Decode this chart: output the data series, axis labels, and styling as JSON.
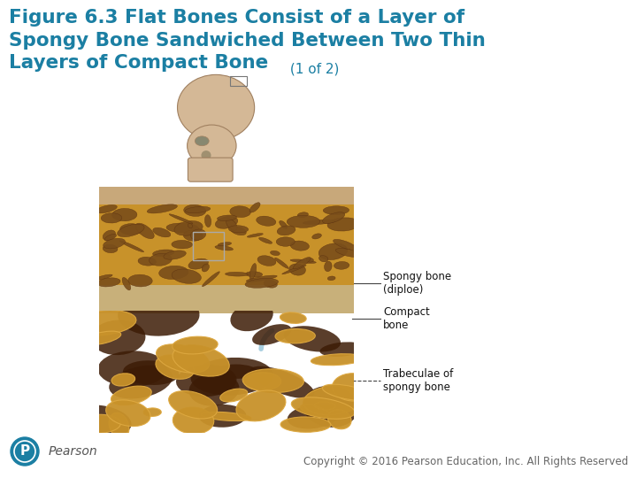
{
  "title_bold": "Figure 6.3 Flat Bones Consist of a Layer of\nSpongy Bone Sandwiched Between Two Thin\nLayers of Compact Bone",
  "title_suffix": " (1 of 2)",
  "title_color": "#1b7fa3",
  "title_fontsize": 15.5,
  "suffix_fontsize": 11,
  "bg_color": "#ffffff",
  "copyright_text": "Copyright © 2016 Pearson Education, Inc. All Rights Reserved",
  "copyright_fontsize": 8.5,
  "pearson_text": "Pearson",
  "pearson_color": "#555555",
  "pearson_icon_color": "#1b7fa3",
  "label_spongy": "Spongy bone\n(diploe)",
  "label_compact": "Compact\nbone",
  "label_trabeculae": "Trabeculae of\nspongy bone",
  "label_fontsize": 8.5,
  "label_color": "#111111",
  "skull_bg": "#f0e0c0",
  "skull_bone_color": "#d4b896",
  "cs_bg": "#000000",
  "spongy_color": "#c8922a",
  "spongy_pore_color": "#7a4e1a",
  "compact_color": "#c8a86e",
  "micro_bg": "#6b3c18",
  "trabecula_fill": "#c8922a",
  "trabecula_edge": "#dda840",
  "trabecula_dark": "#3d1c06",
  "arrow_color": "#a8cfe0",
  "line_color": "#555555",
  "pointer_color": "#444444"
}
